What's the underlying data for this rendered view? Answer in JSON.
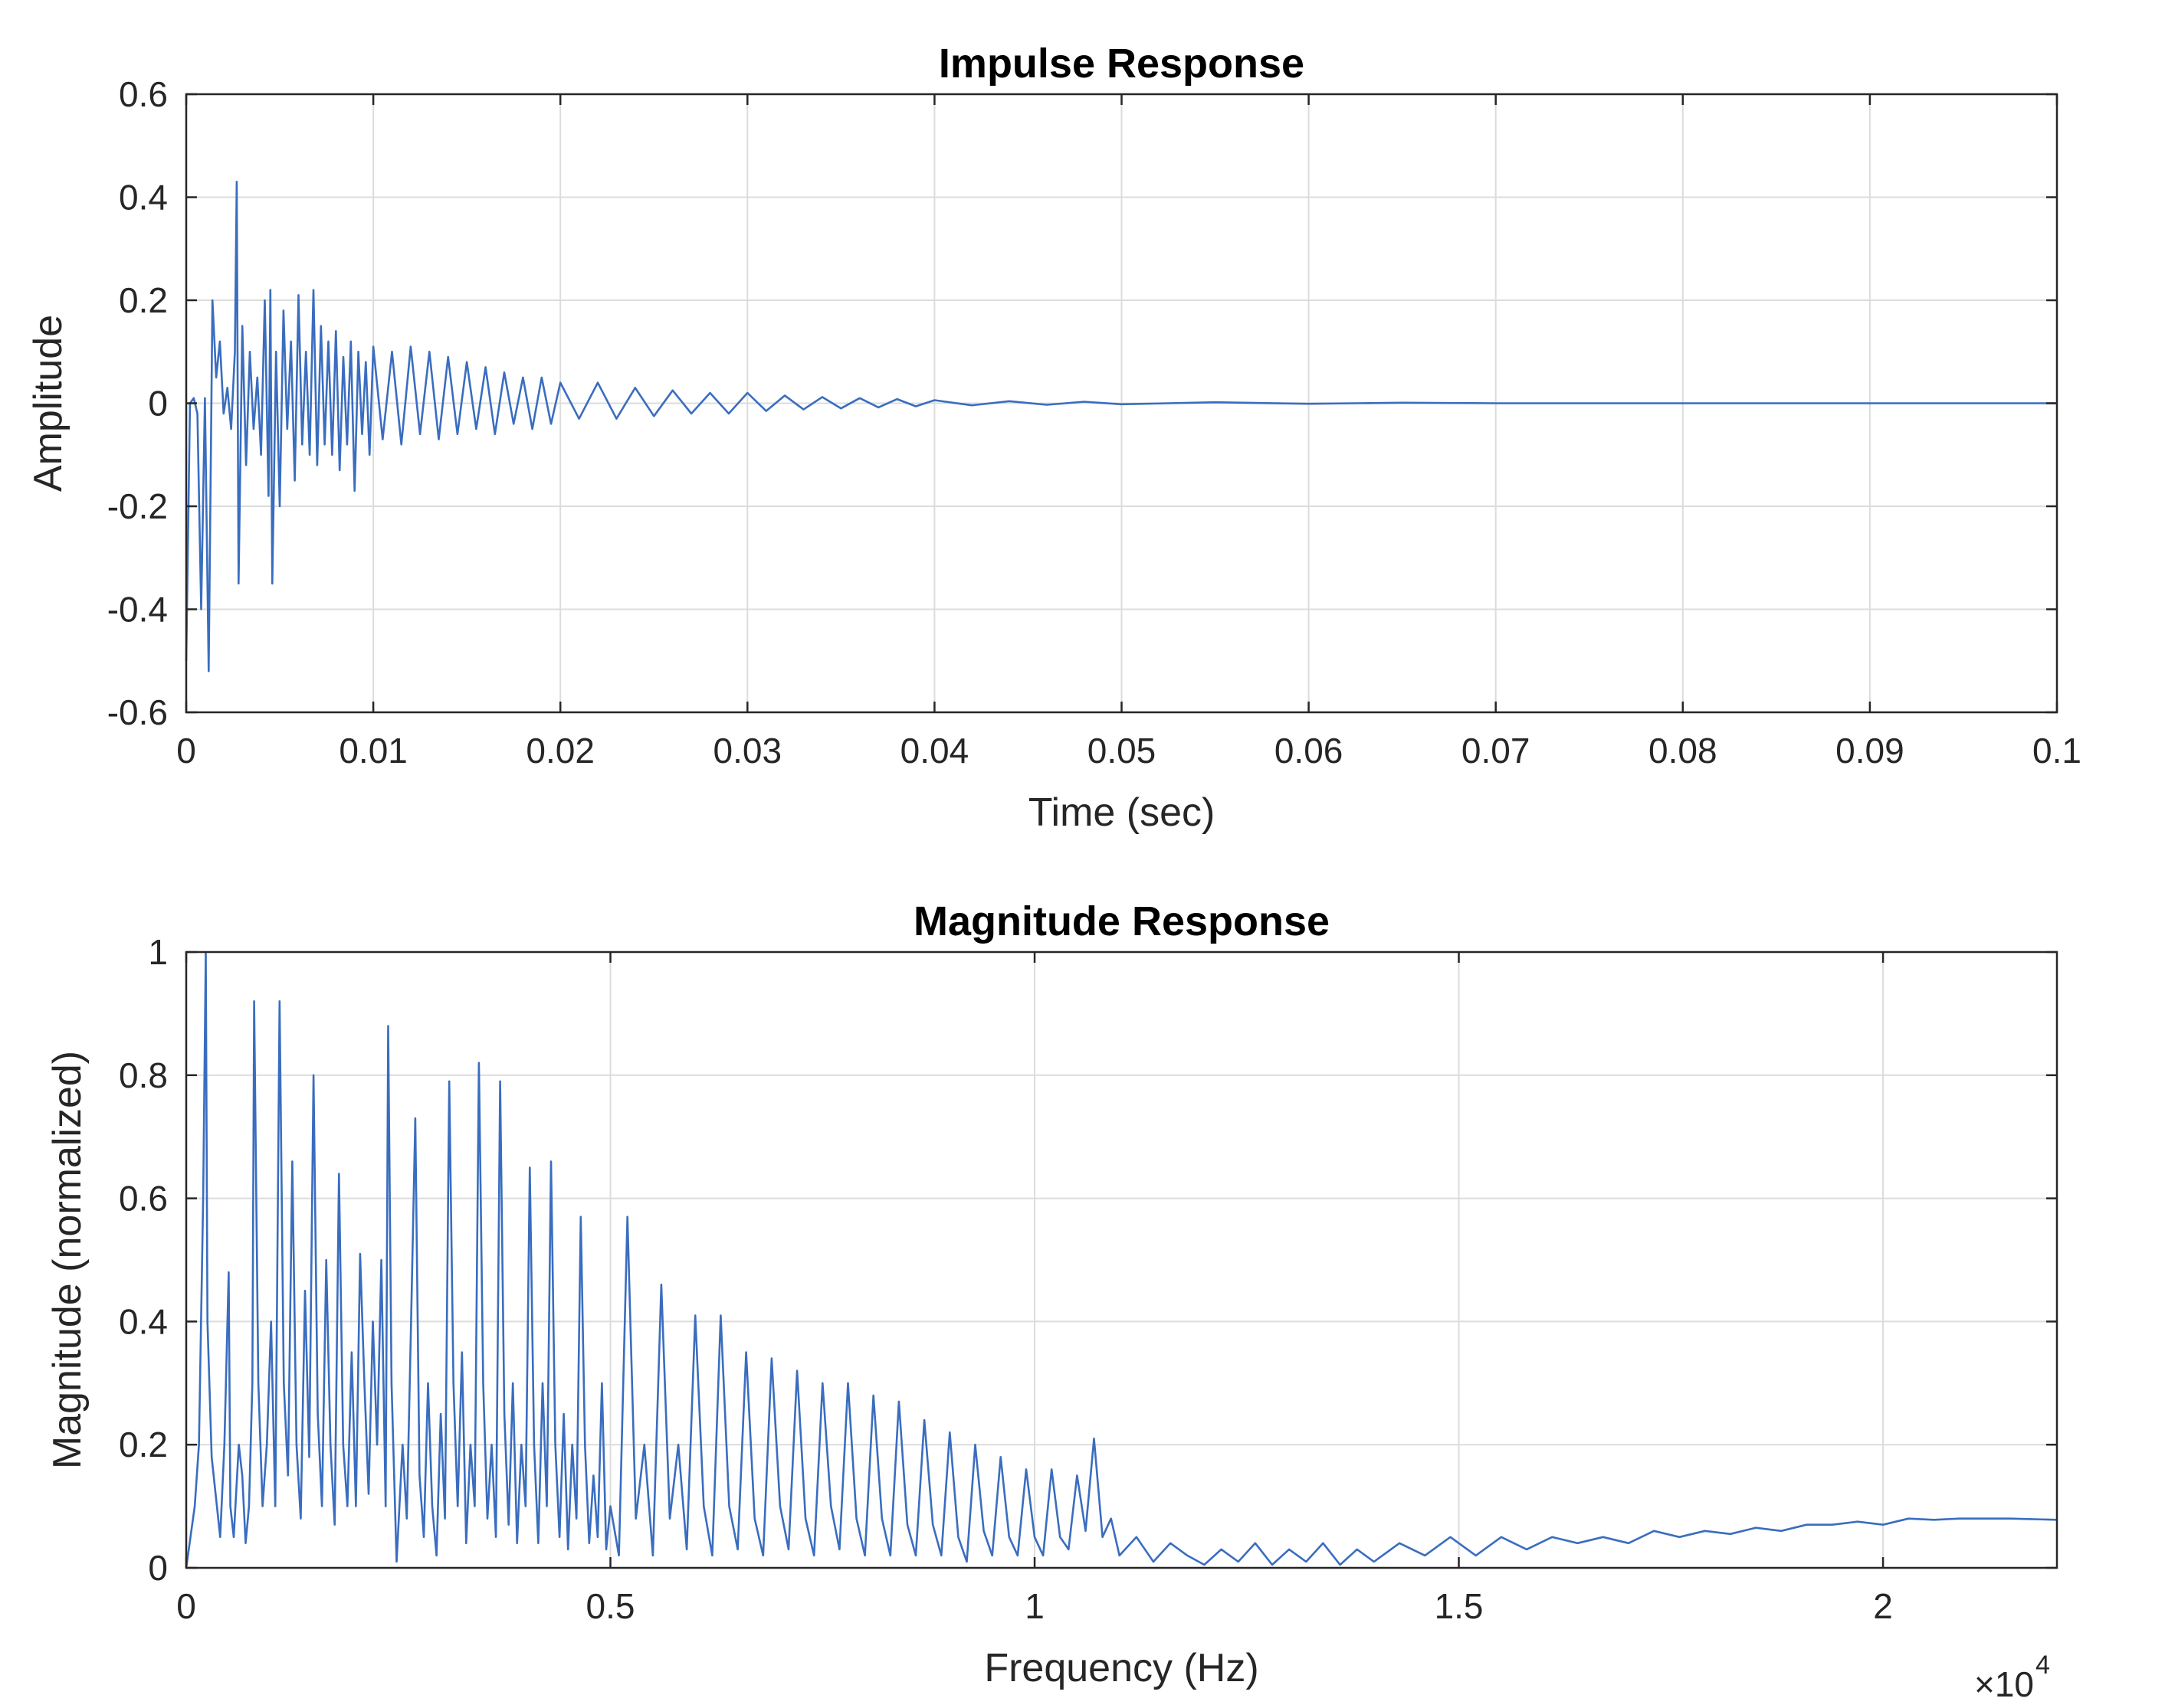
{
  "chart_data": [
    {
      "type": "line",
      "title": "Impulse Response",
      "xlabel": "Time (sec)",
      "ylabel": "Amplitude",
      "xlim": [
        0,
        0.1
      ],
      "ylim": [
        -0.6,
        0.6
      ],
      "xticks": [
        0,
        0.01,
        0.02,
        0.03,
        0.04,
        0.05,
        0.06,
        0.07,
        0.08,
        0.09,
        0.1
      ],
      "xticklabels": [
        "0",
        "0.01",
        "0.02",
        "0.03",
        "0.04",
        "0.05",
        "0.06",
        "0.07",
        "0.08",
        "0.09",
        "0.1"
      ],
      "yticks": [
        -0.6,
        -0.4,
        -0.2,
        0,
        0.2,
        0.4,
        0.6
      ],
      "yticklabels": [
        "-0.6",
        "-0.4",
        "-0.2",
        "0",
        "0.2",
        "0.4",
        "0.6"
      ],
      "grid": true,
      "color": "#3a6dbf",
      "series": [
        {
          "x": [
            0,
            0.0002,
            0.0004,
            0.0006,
            0.0008,
            0.001,
            0.0012,
            0.0014,
            0.0016,
            0.0018,
            0.002,
            0.0022,
            0.0024,
            0.0026,
            0.0027,
            0.0028,
            0.003,
            0.0032,
            0.0034,
            0.0036,
            0.0038,
            0.004,
            0.0042,
            0.0044,
            0.0045,
            0.0046,
            0.0048,
            0.005,
            0.0052,
            0.0054,
            0.0056,
            0.0058,
            0.006,
            0.0062,
            0.0064,
            0.0066,
            0.0068,
            0.007,
            0.0072,
            0.0074,
            0.0076,
            0.0078,
            0.008,
            0.0082,
            0.0084,
            0.0086,
            0.0088,
            0.009,
            0.0092,
            0.0094,
            0.0096,
            0.0098,
            0.01,
            0.0105,
            0.011,
            0.0115,
            0.012,
            0.0125,
            0.013,
            0.0135,
            0.014,
            0.0145,
            0.015,
            0.0155,
            0.016,
            0.0165,
            0.017,
            0.0175,
            0.018,
            0.0185,
            0.019,
            0.0195,
            0.02,
            0.021,
            0.022,
            0.023,
            0.024,
            0.025,
            0.026,
            0.027,
            0.028,
            0.029,
            0.03,
            0.031,
            0.032,
            0.033,
            0.034,
            0.035,
            0.036,
            0.037,
            0.038,
            0.039,
            0.04,
            0.042,
            0.044,
            0.046,
            0.048,
            0.05,
            0.055,
            0.06,
            0.065,
            0.07,
            0.08,
            0.09,
            0.1
          ],
          "y": [
            -0.5,
            0.0,
            0.01,
            -0.02,
            -0.4,
            0.01,
            -0.52,
            0.2,
            0.05,
            0.12,
            -0.02,
            0.03,
            -0.05,
            0.1,
            0.43,
            -0.35,
            0.15,
            -0.12,
            0.1,
            -0.05,
            0.05,
            -0.1,
            0.2,
            -0.18,
            0.22,
            -0.35,
            0.1,
            -0.2,
            0.18,
            -0.05,
            0.12,
            -0.15,
            0.21,
            -0.08,
            0.1,
            -0.1,
            0.22,
            -0.12,
            0.15,
            -0.08,
            0.12,
            -0.1,
            0.14,
            -0.13,
            0.09,
            -0.08,
            0.12,
            -0.17,
            0.1,
            -0.06,
            0.08,
            -0.1,
            0.11,
            -0.07,
            0.1,
            -0.08,
            0.11,
            -0.06,
            0.1,
            -0.07,
            0.09,
            -0.06,
            0.08,
            -0.05,
            0.07,
            -0.06,
            0.06,
            -0.04,
            0.05,
            -0.05,
            0.05,
            -0.04,
            0.04,
            -0.03,
            0.04,
            -0.03,
            0.03,
            -0.025,
            0.025,
            -0.02,
            0.02,
            -0.02,
            0.02,
            -0.015,
            0.015,
            -0.012,
            0.012,
            -0.01,
            0.01,
            -0.008,
            0.008,
            -0.006,
            0.006,
            -0.004,
            0.004,
            -0.003,
            0.003,
            -0.002,
            0.002,
            -0.001,
            0.001,
            0,
            0,
            0,
            0
          ]
        }
      ]
    },
    {
      "type": "line",
      "title": "Magnitude Response",
      "xlabel": "Frequency (Hz)",
      "ylabel": "Magnitude (normalized)",
      "xlim": [
        0,
        22050
      ],
      "ylim": [
        0,
        1
      ],
      "xticks": [
        0,
        5000,
        10000,
        15000,
        20000
      ],
      "xticklabels": [
        "0",
        "0.5",
        "1",
        "1.5",
        "2"
      ],
      "x_exponent_label": "×10",
      "x_exponent": "4",
      "yticks": [
        0,
        0.2,
        0.4,
        0.6,
        0.8,
        1
      ],
      "yticklabels": [
        "0",
        "0.2",
        "0.4",
        "0.6",
        "0.8",
        "1"
      ],
      "grid": true,
      "color": "#3a6dbf",
      "series": [
        {
          "x": [
            0,
            100,
            150,
            200,
            230,
            250,
            300,
            400,
            450,
            500,
            520,
            560,
            620,
            660,
            700,
            740,
            780,
            800,
            850,
            900,
            950,
            1000,
            1050,
            1100,
            1150,
            1200,
            1250,
            1300,
            1350,
            1400,
            1450,
            1500,
            1550,
            1600,
            1650,
            1700,
            1750,
            1800,
            1850,
            1900,
            1950,
            2000,
            2050,
            2100,
            2150,
            2200,
            2250,
            2300,
            2350,
            2380,
            2420,
            2480,
            2550,
            2600,
            2650,
            2700,
            2750,
            2800,
            2850,
            2900,
            2950,
            3000,
            3050,
            3100,
            3150,
            3200,
            3250,
            3300,
            3350,
            3400,
            3450,
            3500,
            3550,
            3600,
            3650,
            3700,
            3750,
            3800,
            3850,
            3900,
            3950,
            4000,
            4050,
            4100,
            4150,
            4200,
            4250,
            4300,
            4350,
            4400,
            4450,
            4500,
            4550,
            4600,
            4650,
            4700,
            4750,
            4800,
            4850,
            4900,
            4950,
            5000,
            5100,
            5200,
            5300,
            5400,
            5500,
            5600,
            5700,
            5800,
            5900,
            6000,
            6100,
            6200,
            6300,
            6400,
            6500,
            6600,
            6700,
            6800,
            6900,
            7000,
            7100,
            7200,
            7300,
            7400,
            7500,
            7600,
            7700,
            7800,
            7900,
            8000,
            8100,
            8200,
            8300,
            8400,
            8500,
            8600,
            8700,
            8800,
            8900,
            9000,
            9100,
            9200,
            9300,
            9400,
            9500,
            9600,
            9700,
            9800,
            9900,
            10000,
            10100,
            10200,
            10300,
            10400,
            10500,
            10600,
            10700,
            10800,
            10900,
            11000,
            11200,
            11400,
            11600,
            11800,
            12000,
            12200,
            12400,
            12600,
            12800,
            13000,
            13200,
            13400,
            13600,
            13800,
            14000,
            14300,
            14600,
            14900,
            15200,
            15500,
            15800,
            16100,
            16400,
            16700,
            17000,
            17300,
            17600,
            17900,
            18200,
            18500,
            18800,
            19100,
            19400,
            19700,
            20000,
            20300,
            20600,
            20900,
            21200,
            21500,
            22050
          ],
          "y": [
            0.0,
            0.1,
            0.2,
            0.6,
            1.0,
            0.4,
            0.18,
            0.05,
            0.2,
            0.48,
            0.1,
            0.05,
            0.2,
            0.15,
            0.04,
            0.1,
            0.3,
            0.92,
            0.3,
            0.1,
            0.2,
            0.4,
            0.1,
            0.92,
            0.3,
            0.15,
            0.66,
            0.2,
            0.08,
            0.45,
            0.18,
            0.8,
            0.25,
            0.1,
            0.5,
            0.2,
            0.07,
            0.64,
            0.2,
            0.1,
            0.35,
            0.1,
            0.51,
            0.3,
            0.12,
            0.4,
            0.2,
            0.5,
            0.1,
            0.88,
            0.3,
            0.01,
            0.2,
            0.08,
            0.4,
            0.73,
            0.15,
            0.05,
            0.3,
            0.1,
            0.02,
            0.25,
            0.08,
            0.79,
            0.3,
            0.1,
            0.35,
            0.04,
            0.2,
            0.1,
            0.82,
            0.3,
            0.08,
            0.2,
            0.05,
            0.79,
            0.25,
            0.07,
            0.3,
            0.04,
            0.2,
            0.1,
            0.65,
            0.2,
            0.04,
            0.3,
            0.1,
            0.66,
            0.2,
            0.05,
            0.25,
            0.03,
            0.2,
            0.08,
            0.57,
            0.2,
            0.04,
            0.15,
            0.05,
            0.3,
            0.03,
            0.1,
            0.02,
            0.57,
            0.08,
            0.2,
            0.02,
            0.46,
            0.08,
            0.2,
            0.03,
            0.41,
            0.1,
            0.02,
            0.41,
            0.1,
            0.03,
            0.35,
            0.08,
            0.02,
            0.34,
            0.1,
            0.03,
            0.32,
            0.08,
            0.02,
            0.3,
            0.1,
            0.03,
            0.3,
            0.08,
            0.02,
            0.28,
            0.08,
            0.02,
            0.27,
            0.07,
            0.02,
            0.24,
            0.07,
            0.02,
            0.22,
            0.05,
            0.01,
            0.2,
            0.06,
            0.02,
            0.18,
            0.05,
            0.02,
            0.16,
            0.05,
            0.02,
            0.16,
            0.05,
            0.03,
            0.15,
            0.06,
            0.21,
            0.05,
            0.08,
            0.02,
            0.05,
            0.01,
            0.04,
            0.02,
            0.005,
            0.03,
            0.01,
            0.04,
            0.005,
            0.03,
            0.01,
            0.04,
            0.005,
            0.03,
            0.01,
            0.04,
            0.02,
            0.05,
            0.02,
            0.05,
            0.03,
            0.05,
            0.04,
            0.05,
            0.04,
            0.06,
            0.05,
            0.06,
            0.055,
            0.065,
            0.06,
            0.07,
            0.07,
            0.075,
            0.07,
            0.08,
            0.078,
            0.08,
            0.08,
            0.08,
            0.078
          ]
        }
      ]
    }
  ]
}
